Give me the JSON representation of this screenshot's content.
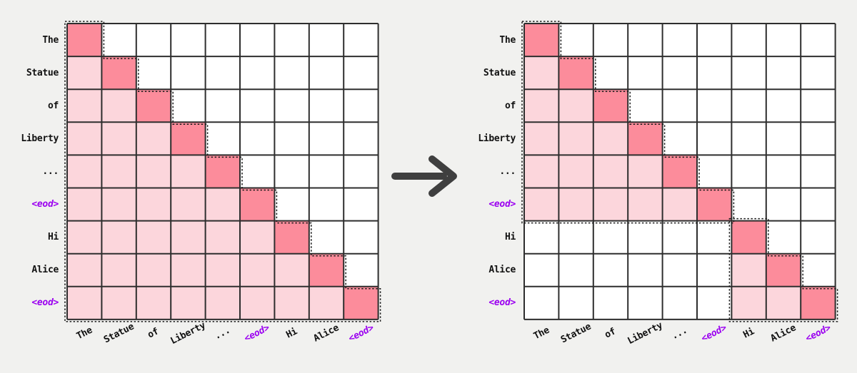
{
  "figure": {
    "tokens": [
      {
        "text": "The",
        "special": false
      },
      {
        "text": "Statue",
        "special": false
      },
      {
        "text": "of",
        "special": false
      },
      {
        "text": "Liberty",
        "special": false
      },
      {
        "text": "...",
        "special": false
      },
      {
        "text": "<eod>",
        "special": true
      },
      {
        "text": "Hi",
        "special": false
      },
      {
        "text": "Alice",
        "special": false
      },
      {
        "text": "<eod>",
        "special": true
      }
    ],
    "matrices": [
      {
        "name": "full-causal-attention-mask",
        "attention_blocks": [
          [
            0,
            9
          ]
        ]
      },
      {
        "name": "document-block-causal-attention-mask",
        "attention_blocks": [
          [
            0,
            6
          ],
          [
            6,
            9
          ]
        ]
      }
    ],
    "icons": {
      "transform_arrow": "→"
    },
    "colors": {
      "diagonal_cell": "#fc8c9b",
      "attended_cell": "#fcd6dc",
      "masked_cell": "#ffffff",
      "grid_line": "#2e2e2e",
      "dotted_outline": "#1a1a1a",
      "token_label": "#111111",
      "special_token": "#9b00f0",
      "arrow": "#3f3f3f",
      "background": "#f1f1ef"
    }
  }
}
